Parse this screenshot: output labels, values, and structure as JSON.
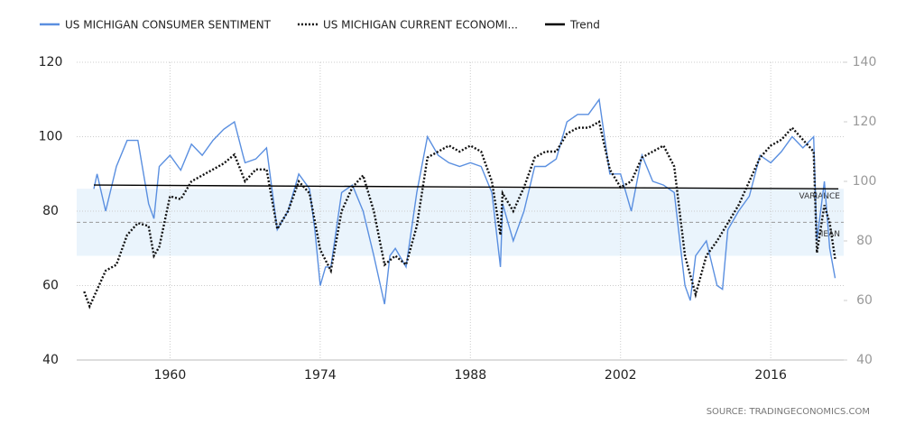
{
  "chart_data": {
    "type": "line",
    "xlim": [
      1951.3,
      2022.8
    ],
    "xticks": [
      1960,
      1974,
      1988,
      2002,
      2016
    ],
    "ylim": [
      40,
      120
    ],
    "yticks": [
      40,
      60,
      80,
      100,
      120
    ],
    "y2lim": [
      40,
      140
    ],
    "y2ticks": [
      40,
      60,
      80,
      100,
      120,
      140
    ],
    "grid": true,
    "series": [
      {
        "name": "US MICHIGAN CONSUMER SENTIMENT",
        "color": "#5a8fe0",
        "dash": "solid",
        "x": [
          1952.9,
          1953.2,
          1954,
          1955,
          1956,
          1957,
          1958,
          1958.5,
          1959,
          1960,
          1961,
          1962,
          1963,
          1964,
          1965,
          1966,
          1966.8,
          1967,
          1968,
          1969,
          1970,
          1971,
          1972,
          1973,
          1973.5,
          1974,
          1974.5,
          1975,
          1976,
          1977,
          1978,
          1979,
          1980,
          1980.5,
          1981,
          1982,
          1983,
          1984,
          1985,
          1986,
          1987,
          1988,
          1989,
          1990,
          1990.8,
          1991,
          1992,
          1993,
          1994,
          1995,
          1996,
          1997,
          1998,
          1999,
          2000,
          2001,
          2002,
          2003,
          2004,
          2005,
          2006,
          2007,
          2008,
          2008.5,
          2009,
          2010,
          2011,
          2011.5,
          2012,
          2013,
          2014,
          2015,
          2016,
          2017,
          2018,
          2019,
          2020,
          2020.3,
          2021,
          2021.5,
          2022
        ],
        "values": [
          86,
          90,
          80,
          92,
          99,
          99,
          82,
          78,
          92,
          95,
          91,
          98,
          95,
          99,
          102,
          104,
          95,
          93,
          94,
          97,
          75,
          80,
          90,
          86,
          75,
          60,
          65,
          65,
          85,
          87,
          80,
          68,
          55,
          68,
          70,
          65,
          85,
          100,
          95,
          93,
          92,
          93,
          92,
          85,
          65,
          82,
          72,
          80,
          92,
          92,
          94,
          104,
          106,
          106,
          110,
          90,
          90,
          80,
          95,
          88,
          87,
          85,
          60,
          56,
          68,
          72,
          60,
          59,
          75,
          80,
          84,
          95,
          93,
          96,
          100,
          97,
          100,
          72,
          88,
          70,
          62
        ]
      },
      {
        "name": "US MICHIGAN CURRENT ECONOMI...",
        "color": "#111111",
        "dash": "dotted",
        "axis": "y2",
        "x": [
          1952,
          1952.5,
          1953,
          1954,
          1955,
          1956,
          1957,
          1958,
          1958.5,
          1959,
          1960,
          1961,
          1962,
          1963,
          1964,
          1965,
          1966,
          1967,
          1968,
          1969,
          1970,
          1971,
          1972,
          1973,
          1974,
          1975,
          1976,
          1977,
          1978,
          1979,
          1980,
          1981,
          1982,
          1983,
          1984,
          1985,
          1986,
          1987,
          1988,
          1989,
          1990,
          1990.8,
          1991,
          1992,
          1993,
          1994,
          1995,
          1996,
          1997,
          1998,
          1999,
          2000,
          2001,
          2002,
          2003,
          2004,
          2005,
          2006,
          2007,
          2008,
          2009,
          2010,
          2011,
          2012,
          2013,
          2014,
          2015,
          2016,
          2017,
          2018,
          2019,
          2020,
          2020.3,
          2021,
          2021.5,
          2022
        ],
        "values": [
          63,
          58,
          62,
          70,
          72,
          82,
          86,
          85,
          75,
          78,
          95,
          94,
          100,
          102,
          104,
          106,
          109,
          100,
          104,
          104,
          84,
          90,
          100,
          96,
          77,
          70,
          90,
          98,
          102,
          90,
          72,
          75,
          72,
          85,
          108,
          110,
          112,
          110,
          112,
          110,
          100,
          82,
          96,
          90,
          98,
          108,
          110,
          110,
          116,
          118,
          118,
          120,
          104,
          98,
          100,
          108,
          110,
          112,
          105,
          75,
          62,
          75,
          80,
          86,
          92,
          100,
          108,
          112,
          114,
          118,
          114,
          110,
          76,
          92,
          86,
          74
        ]
      },
      {
        "name": "Trend",
        "color": "#000000",
        "dash": "solid",
        "x": [
          1952.9,
          2022.3
        ],
        "values": [
          87,
          86
        ]
      }
    ],
    "variance": {
      "label": "VARIANCE",
      "range": [
        68,
        86
      ]
    },
    "mean": {
      "label": "MEAN",
      "value": 77
    },
    "source": "SOURCE:  TRADINGECONOMICS.COM"
  }
}
